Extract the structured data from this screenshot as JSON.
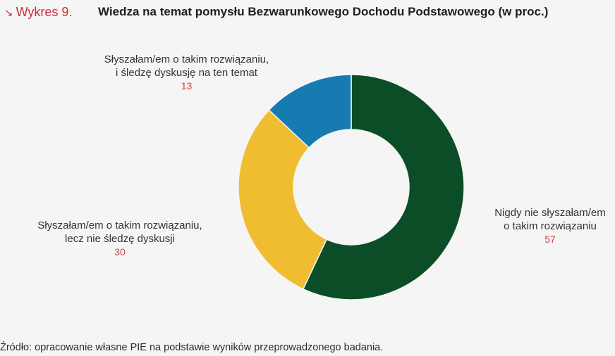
{
  "header": {
    "label": "Wykres 9.",
    "label_icon": "arrow-down-right-icon",
    "title": "Wiedza na temat pomysłu Bezwarunkowego Dochodu Podstawowego (w proc.)"
  },
  "chart_data": {
    "type": "pie",
    "variant": "donut",
    "title": "Wiedza na temat pomysłu Bezwarunkowego Dochodu Podstawowego (w proc.)",
    "slices": [
      {
        "label_line1": "Nigdy nie słyszałam/em",
        "label_line2": "o takim rozwiązaniu",
        "value": 57,
        "color": "#0b4d26"
      },
      {
        "label_line1": "Słyszałam/em o takim rozwiązaniu,",
        "label_line2": "lecz nie śledzę dyskusji",
        "value": 30,
        "color": "#f0bc30"
      },
      {
        "label_line1": "Słyszałam/em o takim rozwiązaniu,",
        "label_line2": "i śledzę dyskusję na ten temat",
        "value": 13,
        "color": "#167bb0"
      }
    ]
  },
  "footer": {
    "source": "Źródło: opracowanie własne PIE na podstawie wyników przeprowadzonego badania."
  }
}
